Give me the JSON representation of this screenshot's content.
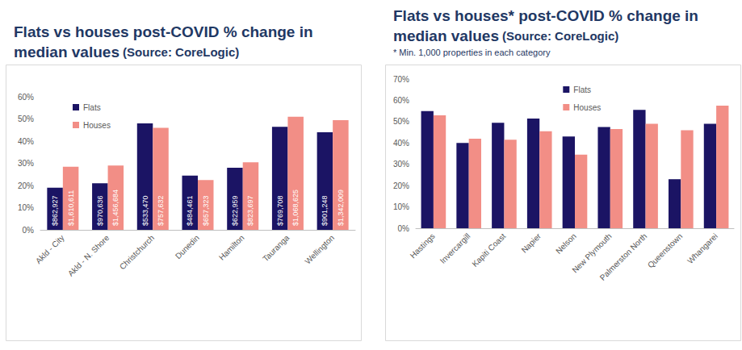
{
  "chart_data": [
    {
      "type": "bar",
      "title": "Flats vs houses post-COVID % change in median values",
      "subtitle": "(Source: CoreLogic)",
      "categories": [
        "Akld - City",
        "Akld - N. Shore",
        "Christchurch",
        "Dunedin",
        "Hamilton",
        "Tauranga",
        "Wellington"
      ],
      "series": [
        {
          "name": "Flats",
          "color": "#1b1464",
          "values": [
            19,
            21,
            48,
            24.5,
            28,
            46.5,
            44
          ],
          "median_labels": [
            "$862,927",
            "$970,636",
            "$533,470",
            "$484,461",
            "$622,959",
            "$769,708",
            "$901,248"
          ]
        },
        {
          "name": "Houses",
          "color": "#f28e86",
          "values": [
            28.5,
            29,
            46,
            22.5,
            30.5,
            51,
            49.5
          ],
          "median_labels": [
            "$1,610,611",
            "$1,456,684",
            "$757,632",
            "$657,323",
            "$823,697",
            "$1,068,625",
            "$1,342,009"
          ]
        }
      ],
      "ylim": [
        0,
        60
      ],
      "yticks": [
        {
          "value": 0,
          "label": "0%"
        },
        {
          "value": 10,
          "label": "10%"
        },
        {
          "value": 20,
          "label": "20%"
        },
        {
          "value": 30,
          "label": "30%"
        },
        {
          "value": 40,
          "label": "40%"
        },
        {
          "value": 50,
          "label": "50%"
        },
        {
          "value": 60,
          "label": "60%"
        }
      ],
      "grid": false,
      "legend": "top-left"
    },
    {
      "type": "bar",
      "title": "Flats vs houses* post-COVID % change in median values",
      "subtitle": "(Source: CoreLogic)",
      "annotation": "* Min. 1,000 properties in each category",
      "categories": [
        "Hastings",
        "Invercargill",
        "Kapiti Coast",
        "Napier",
        "Nelson",
        "New Plymouth",
        "Palmerston North",
        "Queenstown",
        "Whangarei"
      ],
      "series": [
        {
          "name": "Flats",
          "color": "#1b1464",
          "values": [
            55,
            40,
            49.5,
            51.5,
            43,
            47.5,
            55.5,
            23,
            49
          ]
        },
        {
          "name": "Houses",
          "color": "#f28e86",
          "values": [
            53,
            42,
            41.5,
            45.5,
            34.5,
            46.5,
            49,
            46,
            57.5
          ]
        }
      ],
      "ylim": [
        0,
        70
      ],
      "yticks": [
        {
          "value": 0,
          "label": "0%"
        },
        {
          "value": 10,
          "label": "10%"
        },
        {
          "value": 20,
          "label": "20%"
        },
        {
          "value": 30,
          "label": "30%"
        },
        {
          "value": 40,
          "label": "40%"
        },
        {
          "value": 50,
          "label": "50%"
        },
        {
          "value": 60,
          "label": "60%"
        },
        {
          "value": 70,
          "label": "70%"
        }
      ],
      "grid": false,
      "legend": "top-center"
    }
  ]
}
